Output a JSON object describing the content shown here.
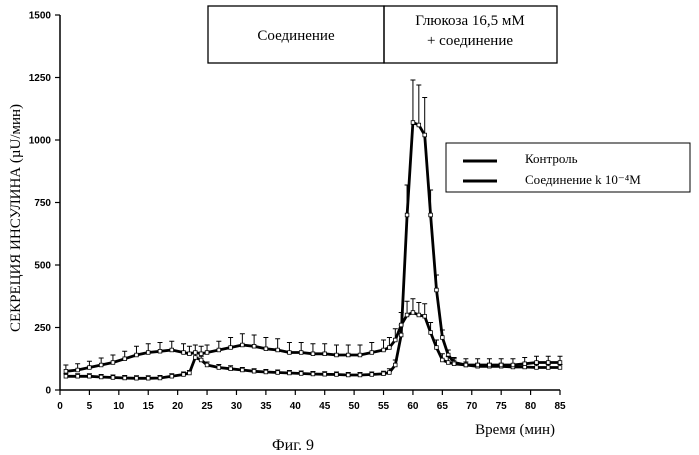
{
  "figure_caption": "Фиг. 9",
  "chart_data": {
    "type": "line",
    "title": "",
    "xlabel": "Время (мин)",
    "ylabel": "СЕКРЕЦИЯ ИНСУЛИНА (µU/мин)",
    "xlim": [
      0,
      85
    ],
    "ylim": [
      0,
      1500
    ],
    "x_ticks": [
      "0",
      "5",
      "10",
      "15",
      "20",
      "25",
      "30",
      "35",
      "40",
      "45",
      "50",
      "55",
      "60",
      "65",
      "70",
      "75",
      "80",
      "85"
    ],
    "y_ticks": [
      "0",
      "250",
      "500",
      "750",
      "1000",
      "1250",
      "1500"
    ],
    "condition_boxes": [
      {
        "label_lines": [
          "Соединение"
        ]
      },
      {
        "label_lines": [
          "Глюкоза 16,5 мМ",
          "+ соединение"
        ]
      }
    ],
    "legend": {
      "placement": "right",
      "entries": [
        "Контроль",
        "Соединение k 10⁻⁴M"
      ]
    },
    "series": [
      {
        "name": "Контроль",
        "color": "#000000",
        "x": [
          1,
          3,
          5,
          7,
          9,
          11,
          13,
          15,
          17,
          19,
          21,
          22,
          23,
          24,
          25,
          27,
          29,
          31,
          33,
          35,
          37,
          39,
          41,
          43,
          45,
          47,
          49,
          51,
          53,
          55,
          56,
          57,
          58,
          59,
          60,
          61,
          62,
          63,
          64,
          65,
          66,
          67,
          69,
          71,
          73,
          75,
          77,
          79,
          81,
          83,
          85
        ],
        "y": [
          55,
          55,
          55,
          52,
          50,
          48,
          47,
          47,
          48,
          55,
          62,
          68,
          130,
          120,
          100,
          90,
          85,
          80,
          75,
          72,
          70,
          68,
          66,
          64,
          63,
          62,
          60,
          60,
          62,
          65,
          70,
          100,
          220,
          700,
          1070,
          1060,
          1020,
          700,
          400,
          210,
          140,
          110,
          100,
          95,
          95,
          95,
          92,
          92,
          90,
          90,
          90
        ],
        "err": [
          10,
          10,
          10,
          10,
          10,
          10,
          10,
          10,
          10,
          10,
          10,
          10,
          15,
          15,
          12,
          12,
          12,
          10,
          10,
          10,
          10,
          10,
          10,
          10,
          10,
          10,
          10,
          10,
          10,
          10,
          15,
          20,
          40,
          120,
          170,
          160,
          150,
          100,
          60,
          30,
          20,
          15,
          12,
          12,
          12,
          12,
          12,
          12,
          12,
          12,
          12
        ]
      },
      {
        "name": "Соединение k 10⁻⁴M",
        "color": "#000000",
        "x": [
          1,
          3,
          5,
          7,
          9,
          11,
          13,
          15,
          17,
          19,
          21,
          22,
          23,
          24,
          25,
          27,
          29,
          31,
          33,
          35,
          37,
          39,
          41,
          43,
          45,
          47,
          49,
          51,
          53,
          55,
          56,
          57,
          58,
          59,
          60,
          61,
          62,
          63,
          64,
          65,
          66,
          67,
          69,
          71,
          73,
          75,
          77,
          79,
          81,
          83,
          85
        ],
        "y": [
          75,
          80,
          90,
          100,
          110,
          125,
          140,
          150,
          155,
          160,
          150,
          145,
          150,
          145,
          150,
          160,
          170,
          180,
          175,
          165,
          160,
          150,
          150,
          145,
          145,
          140,
          140,
          140,
          150,
          160,
          170,
          200,
          260,
          300,
          310,
          300,
          295,
          230,
          170,
          120,
          110,
          105,
          100,
          100,
          100,
          100,
          100,
          105,
          110,
          110,
          110
        ],
        "err": [
          25,
          25,
          25,
          28,
          30,
          30,
          35,
          35,
          35,
          35,
          35,
          30,
          30,
          30,
          30,
          35,
          40,
          45,
          45,
          45,
          45,
          40,
          40,
          40,
          40,
          40,
          40,
          40,
          40,
          40,
          40,
          45,
          50,
          55,
          55,
          50,
          50,
          40,
          30,
          25,
          25,
          25,
          25,
          25,
          25,
          25,
          25,
          25,
          25,
          25,
          25
        ]
      }
    ]
  }
}
